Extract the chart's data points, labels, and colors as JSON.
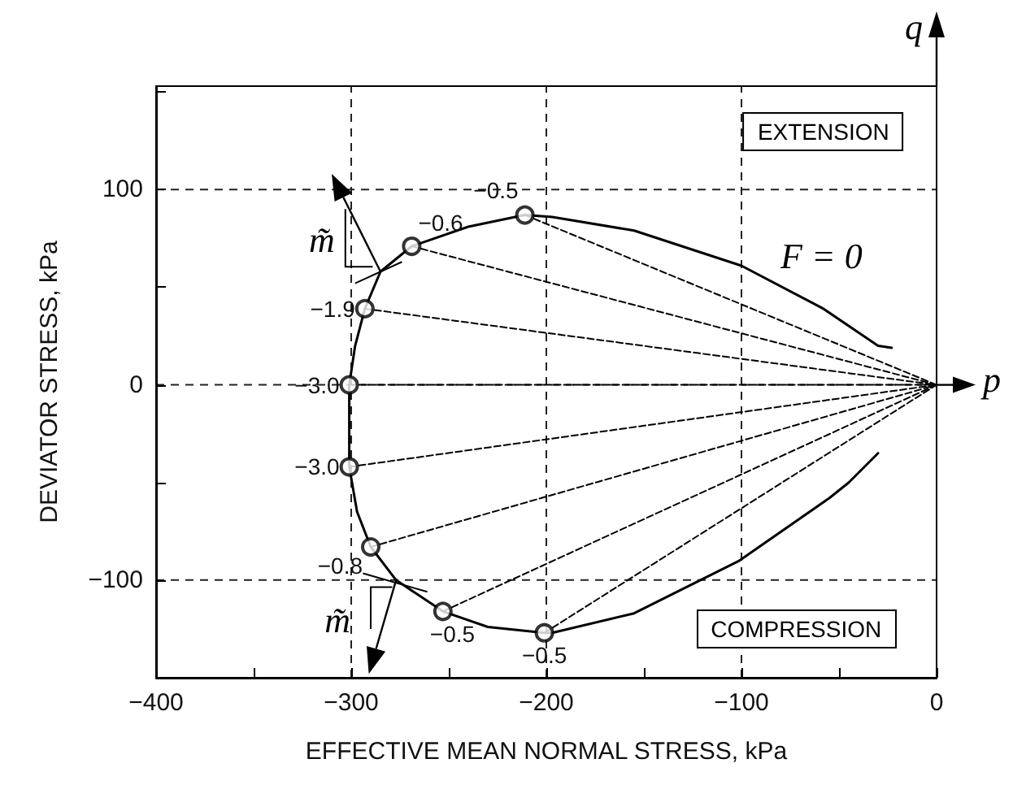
{
  "chart_data": {
    "type": "line",
    "xlabel": "EFFECTIVE MEAN NORMAL STRESS, kPa",
    "ylabel": "DEVIATOR STRESS, kPa",
    "xlim": [
      -400,
      0
    ],
    "xticks": [
      -400,
      {
        "value": -350,
        "label": null
      },
      -300,
      {
        "value": -250,
        "label": null
      },
      -200,
      {
        "value": -150,
        "label": null
      },
      -100,
      {
        "value": -50,
        "label": null
      },
      0
    ],
    "ylim": [
      -150,
      153
    ],
    "yticks": [
      {
        "value": -150,
        "label": null
      },
      -100,
      {
        "value": -50,
        "label": null
      },
      0,
      {
        "value": 50,
        "label": null
      },
      100,
      {
        "value": 150,
        "label": null
      }
    ],
    "grid": true,
    "marker": "none",
    "line_style": "solid",
    "series": [
      {
        "color": "#000000",
        "x": [
          -23,
          -30,
          -58,
          -100,
          -155,
          -197,
          -211,
          -240,
          -269,
          -285,
          -293,
          -298,
          -301,
          -301,
          -297,
          -290,
          -277,
          -253,
          -230,
          -201,
          -197,
          -155,
          -101,
          -55,
          -45,
          -30
        ],
        "values": [
          19,
          20,
          39,
          61,
          79,
          86,
          87,
          81,
          71,
          58,
          39,
          20,
          0,
          -42,
          -65,
          -83,
          -100,
          -116,
          -124,
          -127,
          -127,
          -117,
          -90,
          -58,
          -50,
          -35
        ]
      },
      {
        "line_style": "dashed",
        "color": "#000000",
        "x": [
          -211,
          0
        ],
        "values": [
          87,
          0
        ]
      },
      {
        "line_style": "dashed",
        "color": "#000000",
        "x": [
          -269,
          0
        ],
        "values": [
          71,
          0
        ]
      },
      {
        "line_style": "dashed",
        "color": "#000000",
        "x": [
          -293,
          0
        ],
        "values": [
          39,
          0
        ]
      },
      {
        "line_style": "dashed",
        "color": "#000000",
        "x": [
          -301,
          0
        ],
        "values": [
          0,
          0
        ]
      },
      {
        "line_style": "dashed",
        "color": "#000000",
        "x": [
          -301,
          0
        ],
        "values": [
          -42,
          0
        ]
      },
      {
        "line_style": "dashed",
        "color": "#000000",
        "x": [
          -290,
          0
        ],
        "values": [
          -83,
          0
        ]
      },
      {
        "line_style": "dashed",
        "color": "#000000",
        "x": [
          -253,
          0
        ],
        "values": [
          -116,
          0
        ]
      },
      {
        "line_style": "dashed",
        "color": "#000000",
        "x": [
          -201,
          0
        ],
        "values": [
          -127,
          0
        ]
      },
      {
        "type": "scatter",
        "marker": "circle",
        "color": "#000000",
        "x": [
          -211,
          -269,
          -293,
          -301,
          -301,
          -290,
          -253,
          -201
        ],
        "values": [
          87,
          71,
          39,
          0,
          -42,
          -83,
          -116,
          -127
        ]
      }
    ],
    "annotations": [
      {
        "text": "−0.5",
        "x": -211,
        "y": 87
      },
      {
        "text": "−0.6",
        "x": -269,
        "y": 71
      },
      {
        "text": "−1.9",
        "x": -293,
        "y": 39
      },
      {
        "text": "−3.0",
        "x": -301,
        "y": 0
      },
      {
        "text": "−3.0",
        "x": -301,
        "y": -42
      },
      {
        "text": "−0.8",
        "x": -290,
        "y": -83
      },
      {
        "text": "−0.5",
        "x": -253,
        "y": -116
      },
      {
        "text": "−0.5",
        "x": -201,
        "y": -127
      },
      "EXTENSION",
      "COMPRESSION",
      "F = 0",
      {
        "text": "m̃",
        "x": -285,
        "y": 58
      },
      {
        "text": "m̃",
        "x": -277,
        "y": -100
      },
      "p",
      "q"
    ]
  }
}
